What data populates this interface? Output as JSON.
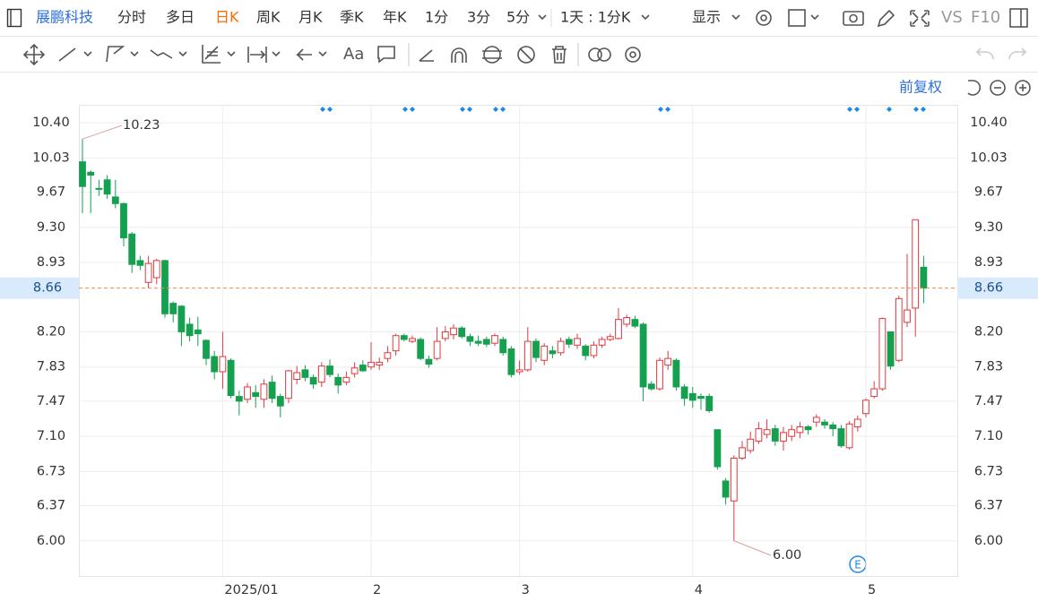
{
  "toolbar": {
    "stock_name": "展鹏科技",
    "periods": [
      "分时",
      "多日",
      "日K",
      "周K",
      "月K",
      "季K",
      "年K",
      "1分",
      "3分",
      "5分"
    ],
    "interval": "1天 : 1分K",
    "display": "显示",
    "compare": "VS",
    "f10": "F10"
  },
  "adjust": "前复权",
  "chart_data": {
    "type": "candlestick",
    "up_color": "#e0393e",
    "down_color": "#14a04f",
    "grid": true,
    "categories": [
      null,
      null,
      null,
      null,
      null,
      null,
      null,
      null,
      null,
      null,
      null,
      null,
      null,
      null,
      null,
      null,
      null,
      "2025/01",
      null,
      null,
      null,
      null,
      null,
      null,
      null,
      null,
      null,
      null,
      null,
      null,
      null,
      null,
      null,
      null,
      null,
      "2",
      null,
      null,
      null,
      null,
      null,
      null,
      null,
      null,
      null,
      null,
      null,
      null,
      null,
      null,
      null,
      null,
      null,
      "3",
      null,
      null,
      null,
      null,
      null,
      null,
      null,
      null,
      null,
      null,
      null,
      null,
      null,
      null,
      null,
      null,
      null,
      null,
      null,
      null,
      "4",
      null,
      null,
      null,
      null,
      null,
      null,
      null,
      null,
      null,
      null,
      null,
      null,
      null,
      null,
      null,
      null,
      null,
      null,
      null,
      null,
      "5",
      null,
      null,
      null,
      null,
      null,
      null,
      null
    ],
    "open": [
      9.99,
      9.88,
      9.71,
      9.8,
      9.62,
      9.55,
      9.23,
      8.95,
      8.72,
      8.77,
      8.95,
      8.5,
      8.47,
      8.28,
      8.22,
      8.11,
      7.94,
      7.78,
      7.9,
      7.52,
      7.49,
      7.56,
      7.49,
      7.67,
      7.52,
      7.5,
      7.7,
      7.8,
      7.72,
      7.67,
      7.84,
      7.72,
      7.67,
      7.76,
      7.85,
      7.83,
      7.85,
      7.92,
      8.0,
      8.16,
      8.1,
      8.12,
      7.91,
      7.92,
      8.13,
      8.17,
      8.24,
      8.15,
      8.1,
      8.12,
      8.08,
      8.12,
      8.02,
      7.78,
      7.8,
      8.1,
      7.9,
      8.0,
      7.98,
      8.12,
      8.06,
      8.05,
      7.95,
      8.06,
      8.12,
      8.13,
      8.28,
      8.33,
      8.28,
      7.65,
      7.6,
      7.85,
      7.9,
      7.62,
      7.55,
      7.52,
      7.52,
      7.17,
      6.63,
      6.42,
      6.87,
      6.95,
      7.05,
      7.12,
      7.18,
      7.05,
      7.1,
      7.14,
      7.2,
      7.25,
      7.25,
      7.22,
      7.18,
      6.98,
      7.2,
      7.34,
      7.52,
      7.6,
      8.2,
      7.9,
      8.3,
      8.45,
      8.88
    ],
    "high": [
      10.23,
      9.9,
      9.8,
      9.85,
      9.8,
      9.56,
      9.25,
      9.0,
      9.0,
      8.97,
      8.96,
      8.52,
      8.48,
      8.35,
      8.36,
      8.12,
      8.0,
      8.2,
      7.92,
      7.58,
      7.66,
      7.64,
      7.7,
      7.74,
      7.55,
      7.8,
      7.84,
      7.85,
      7.75,
      7.88,
      7.91,
      7.76,
      7.78,
      7.88,
      7.9,
      8.09,
      7.93,
      8.05,
      8.18,
      8.18,
      8.16,
      8.14,
      7.95,
      8.25,
      8.26,
      8.28,
      8.26,
      8.18,
      8.16,
      8.15,
      8.18,
      8.15,
      8.05,
      7.9,
      8.25,
      8.13,
      8.08,
      8.05,
      8.14,
      8.15,
      8.18,
      8.07,
      8.1,
      8.15,
      8.18,
      8.45,
      8.38,
      8.37,
      8.3,
      7.68,
      7.93,
      8.0,
      7.92,
      7.65,
      7.62,
      7.55,
      7.55,
      7.17,
      6.66,
      6.9,
      7.05,
      7.15,
      7.25,
      7.28,
      7.22,
      7.2,
      7.22,
      7.25,
      7.22,
      7.33,
      7.28,
      7.25,
      7.22,
      7.26,
      7.32,
      7.5,
      7.68,
      8.35,
      8.2,
      8.58,
      9.02,
      9.38,
      9.0
    ],
    "low": [
      9.45,
      9.45,
      9.63,
      9.6,
      9.5,
      9.1,
      8.82,
      8.85,
      8.66,
      8.7,
      8.35,
      8.3,
      8.05,
      8.1,
      8.05,
      7.85,
      7.7,
      7.6,
      7.5,
      7.32,
      7.45,
      7.4,
      7.4,
      7.45,
      7.3,
      7.45,
      7.65,
      7.68,
      7.6,
      7.62,
      7.72,
      7.55,
      7.64,
      7.72,
      7.78,
      7.8,
      7.8,
      7.88,
      7.95,
      8.1,
      8.08,
      7.9,
      7.82,
      7.9,
      8.1,
      8.12,
      8.13,
      8.05,
      8.05,
      8.04,
      8.05,
      7.95,
      7.72,
      7.75,
      7.78,
      7.88,
      7.85,
      7.92,
      7.95,
      8.03,
      8.02,
      7.9,
      7.92,
      8.03,
      8.1,
      8.12,
      8.25,
      8.24,
      7.47,
      7.58,
      7.58,
      7.8,
      7.58,
      7.42,
      7.4,
      7.38,
      7.35,
      6.75,
      6.38,
      6.0,
      6.85,
      6.92,
      7.02,
      7.08,
      7.0,
      6.95,
      7.05,
      7.08,
      7.12,
      7.2,
      7.18,
      7.1,
      6.98,
      6.96,
      7.15,
      7.3,
      7.5,
      7.58,
      7.8,
      7.88,
      8.25,
      8.15,
      8.5
    ],
    "close": [
      9.73,
      9.85,
      9.7,
      9.65,
      9.55,
      9.19,
      8.91,
      8.9,
      8.92,
      8.95,
      8.39,
      8.39,
      8.2,
      8.16,
      8.18,
      7.92,
      7.78,
      7.94,
      7.53,
      7.47,
      7.62,
      7.52,
      7.65,
      7.5,
      7.42,
      7.79,
      7.77,
      7.72,
      7.65,
      7.84,
      7.75,
      7.64,
      7.72,
      7.82,
      7.79,
      7.88,
      7.88,
      7.98,
      8.16,
      8.12,
      8.13,
      7.92,
      7.86,
      8.1,
      8.2,
      8.24,
      8.15,
      8.1,
      8.08,
      8.07,
      8.16,
      7.98,
      7.75,
      7.8,
      8.1,
      7.93,
      8.05,
      7.97,
      8.1,
      8.07,
      8.13,
      7.95,
      8.06,
      8.12,
      8.15,
      8.33,
      8.35,
      8.26,
      7.62,
      7.6,
      7.9,
      7.92,
      7.62,
      7.5,
      7.48,
      7.5,
      7.37,
      6.78,
      6.46,
      6.87,
      6.98,
      7.07,
      7.18,
      7.17,
      7.05,
      7.14,
      7.17,
      7.2,
      7.17,
      7.3,
      7.22,
      7.18,
      7.0,
      7.23,
      7.28,
      7.48,
      7.6,
      8.34,
      7.84,
      8.55,
      8.43,
      9.38,
      8.66
    ],
    "ylim": [
      5.63,
      10.59
    ],
    "yticks": [
      {
        "value": 6,
        "label": "6.00"
      },
      6.37,
      6.73,
      {
        "value": 7.1,
        "label": "7.10"
      },
      7.47,
      7.83,
      {
        "value": 8.2,
        "label": "8.20"
      },
      8.93,
      {
        "value": 9.3,
        "label": "9.30"
      },
      9.67,
      10.03,
      {
        "value": 10.4,
        "label": "10.40"
      }
    ],
    "current_price": 8.66,
    "max_label": 10.23,
    "min_label": {
      "value": 6,
      "label": "6.00"
    }
  }
}
